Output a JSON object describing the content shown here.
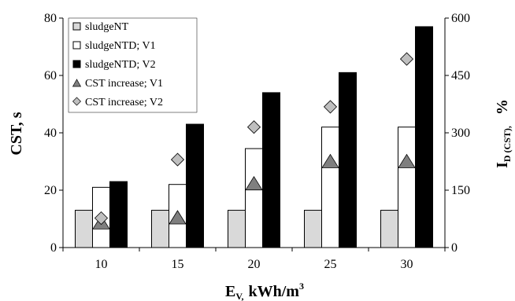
{
  "chart_data": {
    "type": "bar",
    "categories": [
      "10",
      "15",
      "20",
      "25",
      "30"
    ],
    "series": [
      {
        "name": "sludgeNT",
        "kind": "bar",
        "axis": "left",
        "color": "#d9d9d9",
        "values": [
          13,
          13,
          13,
          13,
          13
        ]
      },
      {
        "name": "sludgeNTD; V1",
        "kind": "bar",
        "axis": "left",
        "color": "#ffffff",
        "values": [
          21,
          22,
          34.5,
          42,
          42
        ]
      },
      {
        "name": "sludgeNTD; V2",
        "kind": "bar",
        "axis": "left",
        "color": "#000000",
        "values": [
          23,
          43,
          54,
          61,
          77
        ]
      },
      {
        "name": "CST increase; V1",
        "kind": "triangle",
        "axis": "right",
        "color": "#7f7f7f",
        "values": [
          63,
          76,
          165,
          223,
          223
        ]
      },
      {
        "name": "CST increase; V2",
        "kind": "diamond",
        "axis": "right",
        "color": "#bfbfbf",
        "values": [
          77,
          230,
          315,
          368,
          493
        ]
      }
    ],
    "y_left": {
      "label": "CST, s",
      "min": 0,
      "max": 80,
      "ticks": [
        "0",
        "20",
        "40",
        "60",
        "80"
      ]
    },
    "y_right": {
      "label_main": "I",
      "label_sub": "D (CST),",
      "label_unit": "%",
      "min": 0,
      "max": 600,
      "ticks": [
        "0",
        "150",
        "300",
        "450",
        "600"
      ]
    },
    "x_axis": {
      "label_main": "E",
      "label_sub": "V,",
      "label_unit": "kWh/m",
      "label_sup": "3"
    },
    "legend_position": "top-left"
  }
}
